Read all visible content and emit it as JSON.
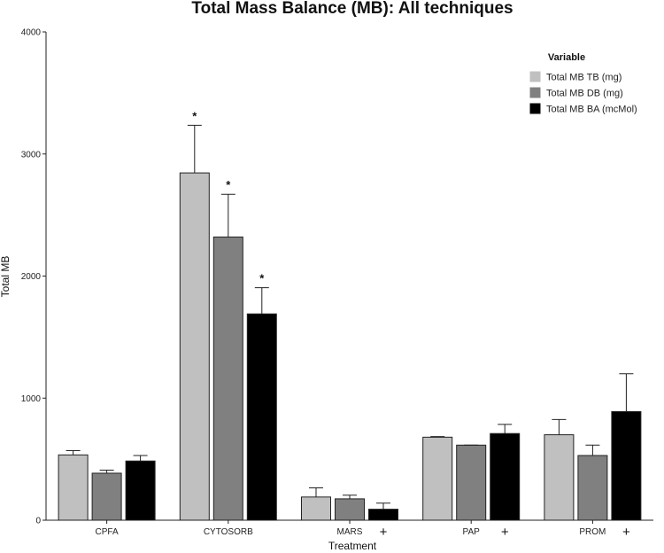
{
  "chart_data": {
    "type": "bar",
    "title": "Total Mass Balance (MB): All techniques",
    "xlabel": "Treatment",
    "ylabel": "Total MB",
    "ylim": [
      0,
      4000
    ],
    "yticks": [
      0,
      1000,
      2000,
      3000,
      4000
    ],
    "categories": [
      "CPFA",
      "CYTOSORB",
      "MARS",
      "PAP",
      "PROM"
    ],
    "category_annotations": [
      "",
      "",
      "+",
      "+",
      "+"
    ],
    "legend": {
      "title": "Variable",
      "position": "top-right"
    },
    "grid": false,
    "series": [
      {
        "name": "Total MB TB (mg)",
        "color": "#c0c0c0",
        "values": [
          535,
          2845,
          190,
          680,
          700
        ],
        "errors": [
          35,
          390,
          75,
          5,
          125
        ],
        "annotations": [
          "",
          "*",
          "",
          "",
          ""
        ]
      },
      {
        "name": "Total MB DB (mg)",
        "color": "#808080",
        "values": [
          385,
          2320,
          175,
          615,
          530
        ],
        "errors": [
          25,
          350,
          30,
          0,
          85
        ],
        "annotations": [
          "",
          "*",
          "",
          "",
          ""
        ]
      },
      {
        "name": "Total MB BA (mcMol)",
        "color": "#000000",
        "values": [
          485,
          1690,
          90,
          710,
          890
        ],
        "errors": [
          45,
          215,
          50,
          75,
          310
        ],
        "annotations": [
          "",
          "*",
          "",
          "",
          ""
        ]
      }
    ]
  }
}
